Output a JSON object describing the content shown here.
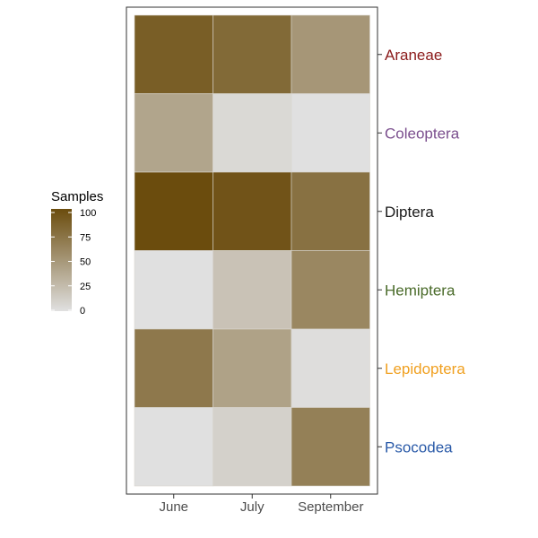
{
  "chart_data": {
    "type": "heatmap",
    "title": "",
    "xlabel": "",
    "ylabel": "",
    "x_categories": [
      "June",
      "July",
      "September"
    ],
    "y_categories": [
      "Araneae",
      "Coleoptera",
      "Diptera",
      "Hemiptera",
      "Lepidoptera",
      "Psocodea"
    ],
    "y_label_colors": {
      "Araneae": "#8b1a1a",
      "Coleoptera": "#7b4f8e",
      "Diptera": "#1a1a1a",
      "Hemiptera": "#4a6b2a",
      "Lepidoptera": "#f0a020",
      "Psocodea": "#2a5aa8"
    },
    "values": [
      [
        88,
        80,
        50
      ],
      [
        40,
        5,
        0
      ],
      [
        100,
        95,
        75
      ],
      [
        0,
        20,
        60
      ],
      [
        70,
        42,
        2
      ],
      [
        0,
        10,
        65
      ]
    ],
    "color_scale": {
      "low": "#e0e0e0",
      "high": "#6b4c0d",
      "min": 0,
      "max": 100
    },
    "legend": {
      "title": "Samples",
      "ticks": [
        0,
        25,
        50,
        75,
        100
      ],
      "placement": "left"
    },
    "grid": false
  }
}
